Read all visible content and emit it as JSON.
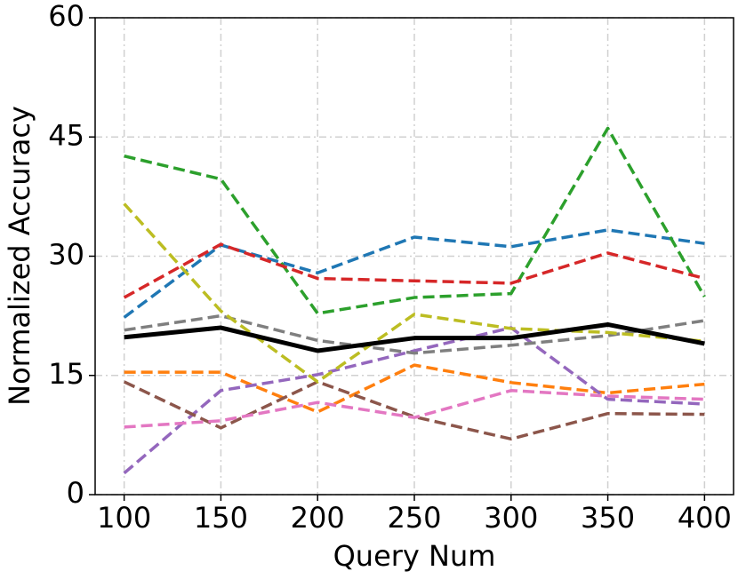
{
  "chart_data": {
    "type": "line",
    "x_label": "Query Num",
    "y_label": "Normalized Accuracy",
    "x": [
      100,
      150,
      200,
      250,
      300,
      350,
      400
    ],
    "xlim": [
      85,
      415
    ],
    "xticks": [
      100,
      150,
      200,
      250,
      300,
      350,
      400
    ],
    "ylim": [
      0,
      60
    ],
    "yticks": [
      0,
      15,
      30,
      45,
      60
    ],
    "grid": true,
    "series": [
      {
        "color": "#1f77b4",
        "style": "dashed",
        "values": [
          22.3,
          31.4,
          27.9,
          32.4,
          31.2,
          33.3,
          31.6
        ]
      },
      {
        "color": "#ff7f0e",
        "style": "dashed",
        "values": [
          15.4,
          15.4,
          10.4,
          16.3,
          14.1,
          12.8,
          13.9
        ]
      },
      {
        "color": "#2ca02c",
        "style": "dashed",
        "values": [
          42.6,
          39.7,
          22.8,
          24.8,
          25.3,
          46.1,
          24.9
        ]
      },
      {
        "color": "#d62728",
        "style": "dashed",
        "values": [
          24.8,
          31.5,
          27.2,
          26.9,
          26.6,
          30.4,
          27.2
        ]
      },
      {
        "color": "#9467bd",
        "style": "dashed",
        "values": [
          2.7,
          13.1,
          15.1,
          18.1,
          21.0,
          12.0,
          11.4
        ]
      },
      {
        "color": "#8c564b",
        "style": "dashed",
        "values": [
          14.2,
          8.4,
          14.2,
          9.8,
          7.0,
          10.2,
          10.1
        ]
      },
      {
        "color": "#e377c2",
        "style": "dashed",
        "values": [
          8.5,
          9.3,
          11.6,
          9.7,
          13.1,
          12.4,
          12.0
        ]
      },
      {
        "color": "#7f7f7f",
        "style": "dashed",
        "values": [
          20.7,
          22.5,
          19.4,
          17.8,
          18.8,
          20.0,
          21.9
        ]
      },
      {
        "color": "#bcbd22",
        "style": "dashed",
        "values": [
          36.6,
          23.1,
          14.2,
          22.7,
          20.9,
          20.4,
          19.3
        ]
      },
      {
        "color": "#000000",
        "style": "solid",
        "values": [
          19.8,
          21.0,
          18.1,
          19.7,
          19.7,
          21.4,
          19.0
        ]
      }
    ]
  }
}
